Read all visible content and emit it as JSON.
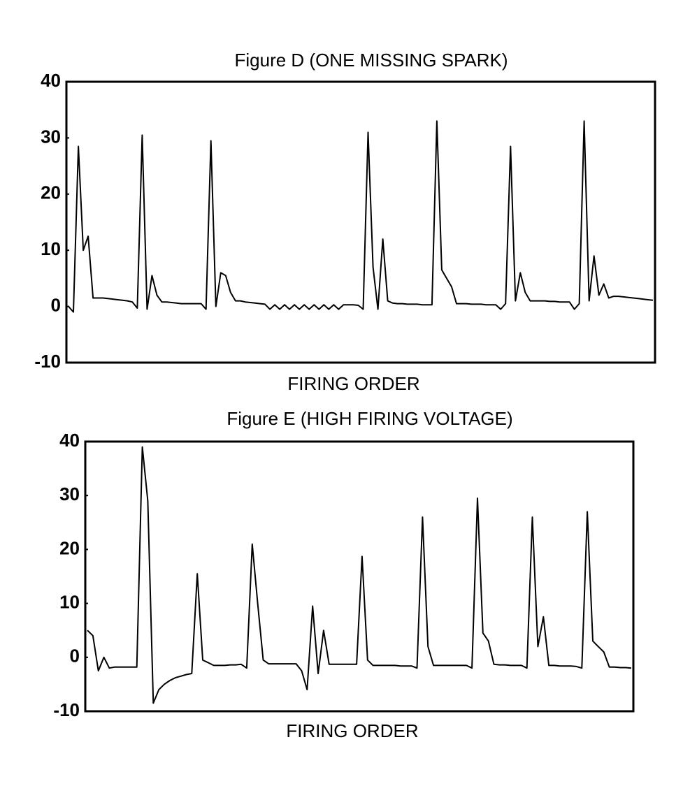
{
  "chart_data": [
    {
      "type": "line",
      "title": "Figure D (ONE MISSING SPARK)",
      "x_label": "FIRING ORDER",
      "ylim": [
        -10,
        40
      ],
      "yticks": [
        40,
        30,
        20,
        10,
        0,
        -10
      ],
      "color": "#000000",
      "values": [
        0,
        -1,
        28.5,
        10,
        12.5,
        1.5,
        1.5,
        1.5,
        1.4,
        1.3,
        1.2,
        1.1,
        1,
        0.8,
        -0.3,
        30.5,
        -0.5,
        5.5,
        2,
        0.8,
        0.8,
        0.7,
        0.6,
        0.5,
        0.5,
        0.5,
        0.5,
        0.5,
        -0.5,
        29.5,
        0,
        6,
        5.5,
        2.5,
        1,
        1,
        0.8,
        0.7,
        0.6,
        0.5,
        0.4,
        -0.5,
        0.3,
        -0.5,
        0.3,
        -0.5,
        0.3,
        -0.5,
        0.3,
        -0.5,
        0.3,
        -0.5,
        0.3,
        -0.5,
        0.3,
        -0.5,
        0.3,
        0.3,
        0.3,
        0.2,
        -0.5,
        31,
        7,
        -0.5,
        12,
        1,
        0.6,
        0.5,
        0.5,
        0.4,
        0.4,
        0.4,
        0.3,
        0.3,
        0.3,
        33,
        6.5,
        5,
        3.5,
        0.5,
        0.5,
        0.5,
        0.4,
        0.4,
        0.4,
        0.3,
        0.3,
        0.3,
        -0.5,
        0.5,
        28.5,
        1,
        6,
        2.5,
        1,
        1,
        1,
        1,
        0.9,
        0.9,
        0.8,
        0.8,
        0.8,
        -0.5,
        0.5,
        33,
        1,
        9,
        2,
        4,
        1.5,
        1.8,
        1.8,
        1.7,
        1.6,
        1.5,
        1.4,
        1.3,
        1.2,
        1.1
      ]
    },
    {
      "type": "line",
      "title": "Figure E (HIGH FIRING VOLTAGE)",
      "x_label": "FIRING ORDER",
      "ylim": [
        -10,
        40
      ],
      "yticks": [
        40,
        30,
        20,
        10,
        0,
        -10
      ],
      "color": "#000000",
      "values": [
        5,
        4,
        -2.5,
        0,
        -2,
        -1.8,
        -1.8,
        -1.8,
        -1.8,
        -1.8,
        39,
        29,
        -8.5,
        -6,
        -5,
        -4.3,
        -3.8,
        -3.5,
        -3.2,
        -3,
        15.5,
        -0.5,
        -1,
        -1.5,
        -1.5,
        -1.5,
        -1.4,
        -1.4,
        -1.3,
        -2,
        21,
        10,
        -0.5,
        -1.2,
        -1.2,
        -1.2,
        -1.2,
        -1.2,
        -1.2,
        -2.5,
        -6,
        9.5,
        -3,
        5,
        -1.3,
        -1.3,
        -1.3,
        -1.3,
        -1.3,
        -1.3,
        18.7,
        -0.5,
        -1.5,
        -1.5,
        -1.5,
        -1.5,
        -1.5,
        -1.6,
        -1.6,
        -1.6,
        -2,
        26,
        2,
        -1.5,
        -1.5,
        -1.5,
        -1.5,
        -1.5,
        -1.5,
        -1.5,
        -2,
        29.5,
        4.5,
        3,
        -1.3,
        -1.4,
        -1.4,
        -1.5,
        -1.5,
        -1.5,
        -2,
        26,
        2,
        7.5,
        -1.5,
        -1.5,
        -1.6,
        -1.6,
        -1.6,
        -1.7,
        -2,
        27,
        3,
        2,
        1,
        -1.8,
        -1.8,
        -1.9,
        -1.9,
        -2
      ]
    }
  ]
}
